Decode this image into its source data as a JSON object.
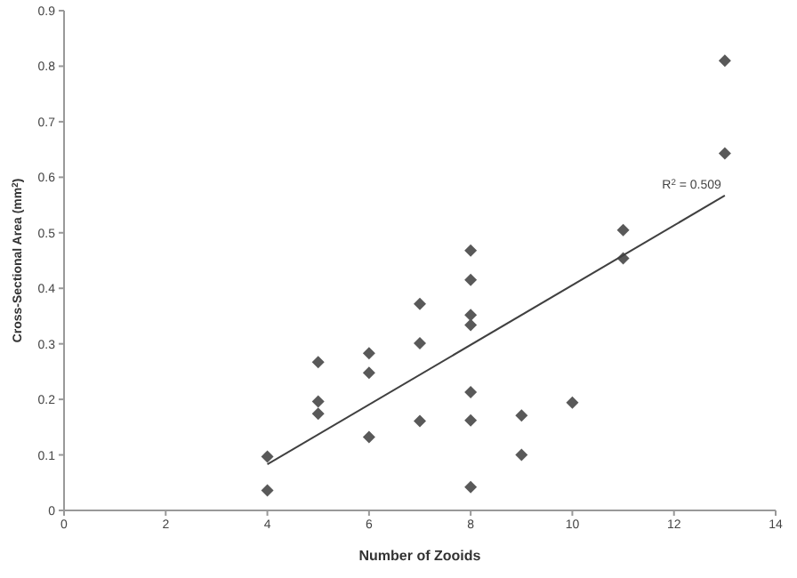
{
  "chart_data": {
    "type": "scatter",
    "xlabel": "Number of Zooids",
    "ylabel": "Cross-Sectional Area (mm$^{2}$)",
    "xlim": [
      0,
      14
    ],
    "xticks": [
      0,
      2,
      4,
      6,
      8,
      10,
      12,
      14
    ],
    "ylim": [
      0,
      0.9
    ],
    "yticks": [
      0,
      0.1,
      0.2,
      0.3,
      0.4,
      0.5,
      0.6,
      0.7,
      0.8,
      0.9
    ],
    "grid": false,
    "marker": "diamond",
    "series": [
      {
        "color": "#595959",
        "x": [
          4,
          4,
          5,
          5,
          5,
          6,
          6,
          6,
          7,
          7,
          7,
          8,
          8,
          8,
          8,
          8,
          8,
          8,
          9,
          9,
          10,
          11,
          11,
          13,
          13
        ],
        "values": [
          0.097,
          0.036,
          0.267,
          0.196,
          0.174,
          0.283,
          0.248,
          0.132,
          0.372,
          0.301,
          0.161,
          0.468,
          0.415,
          0.352,
          0.334,
          0.213,
          0.162,
          0.042,
          0.171,
          0.1,
          0.194,
          0.505,
          0.454,
          0.81,
          0.643
        ]
      },
      {
        "type": "line",
        "color": "#404040",
        "marker": "none",
        "x": [
          4,
          13
        ],
        "values": [
          0.083,
          0.567
        ]
      }
    ],
    "annotations": [
      "R$^{2}$ = 0.509"
    ]
  }
}
